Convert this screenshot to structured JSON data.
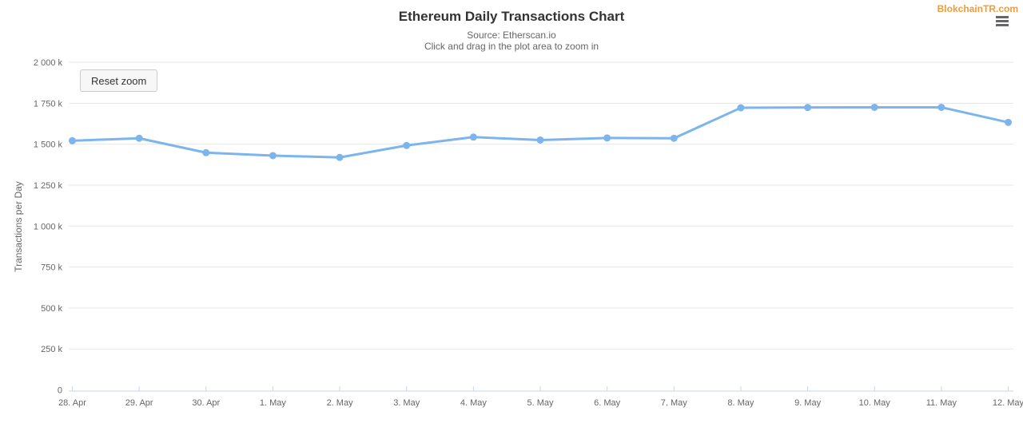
{
  "header": {
    "title": "Ethereum Daily Transactions Chart",
    "subtitle_line1": "Source: Etherscan.io",
    "subtitle_line2": "Click and drag in the plot area to zoom in"
  },
  "credits": {
    "label": "BlokchainTR.com",
    "color": "#F19C38"
  },
  "toolbar": {
    "reset_zoom_label": "Reset zoom"
  },
  "menu": {
    "icon": "hamburger-menu"
  },
  "chart_data": {
    "type": "line",
    "title": "Ethereum Daily Transactions Chart",
    "subtitle": "Source: Etherscan.io",
    "note": "Click and drag in the plot area to zoom in",
    "xlabel": "",
    "ylabel": "Transactions per Day",
    "ylim": [
      0,
      2000000
    ],
    "ytick_interval": 250000,
    "ytick_labels": [
      "0",
      "250 k",
      "500 k",
      "750 k",
      "1 000 k",
      "1 250 k",
      "1 500 k",
      "1 750 k",
      "2 000 k"
    ],
    "grid": true,
    "legend_position": "none",
    "categories": [
      "28. Apr",
      "29. Apr",
      "30. Apr",
      "1. May",
      "2. May",
      "3. May",
      "4. May",
      "5. May",
      "6. May",
      "7. May",
      "8. May",
      "9. May",
      "10. May",
      "11. May",
      "12. May"
    ],
    "series": [
      {
        "name": "Transactions per Day",
        "values": [
          1521000,
          1536000,
          1448000,
          1430000,
          1419000,
          1492000,
          1543000,
          1525000,
          1538000,
          1536000,
          1722000,
          1724000,
          1725000,
          1725000,
          1633000
        ]
      }
    ],
    "colors": {
      "line": "#7cb5ec",
      "marker": "#7cb5ec",
      "grid": "#e6e6e6",
      "axis_line": "#ccd6eb",
      "labels": "#666666",
      "axis_title": "#666666",
      "title": "#333333"
    }
  }
}
